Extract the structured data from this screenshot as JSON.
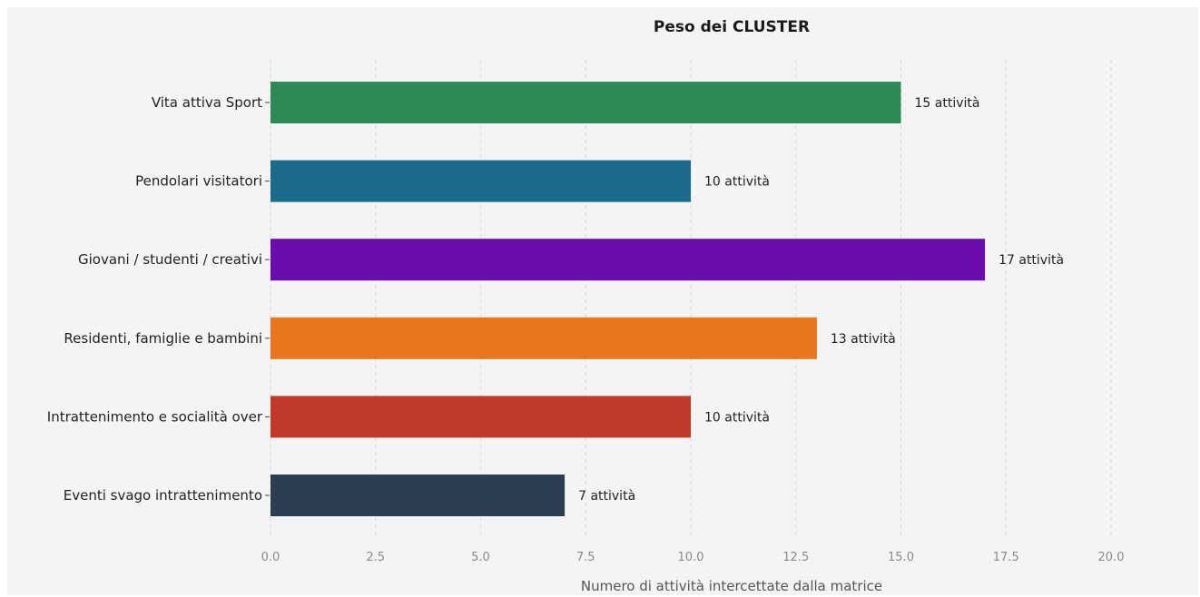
{
  "chart_data": {
    "type": "bar",
    "orientation": "horizontal",
    "title": "Peso dei CLUSTER",
    "xlabel": "Numero di attività intercettate dalla matrice",
    "ylabel": "",
    "xlim": [
      0,
      20
    ],
    "xticks": [
      0,
      2.5,
      5,
      7.5,
      10,
      12.5,
      15,
      17.5,
      20
    ],
    "xtick_labels": [
      "0.0",
      "2.5",
      "5.0",
      "7.5",
      "10.0",
      "12.5",
      "15.0",
      "17.5",
      "20.0"
    ],
    "grid": "x",
    "categories": [
      "Vita attiva Sport",
      "Pendolari visitatori",
      "Giovani / studenti / creativi",
      "Residenti, famiglie e bambini",
      "Intrattenimento e socialità over",
      "Eventi svago intrattenimento"
    ],
    "values": [
      15,
      10,
      17,
      13,
      10,
      7
    ],
    "value_labels": [
      "15 attività",
      "10 attività",
      "17 attività",
      "13 attività",
      "10 attività",
      "7 attività"
    ],
    "colors": [
      "#2e8b57",
      "#1a6a8a",
      "#6a0dad",
      "#e8761e",
      "#c0392b",
      "#2c3e50"
    ]
  }
}
